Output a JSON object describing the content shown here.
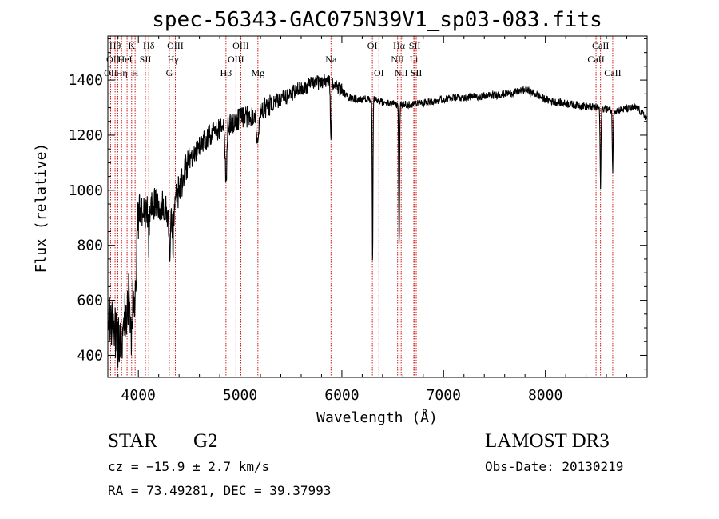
{
  "chart_data": {
    "type": "line",
    "title": "spec-56343-GAC075N39V1_sp03-083.fits",
    "xlabel": "Wavelength (Å)",
    "ylabel": "Flux (relative)",
    "xlim": [
      3700,
      9000
    ],
    "ylim": [
      320,
      1560
    ],
    "xticks": [
      {
        "value": 4000,
        "label": "4000"
      },
      {
        "value": 5000,
        "label": "5000"
      },
      {
        "value": 6000,
        "label": "6000"
      },
      {
        "value": 7000,
        "label": "7000"
      },
      {
        "value": 8000,
        "label": "8000"
      }
    ],
    "yticks": [
      {
        "value": 400,
        "label": "400"
      },
      {
        "value": 600,
        "label": "600"
      },
      {
        "value": 800,
        "label": "800"
      },
      {
        "value": 1000,
        "label": "1000"
      },
      {
        "value": 1200,
        "label": "1200"
      },
      {
        "value": 1400,
        "label": "1400"
      }
    ],
    "line_color": "#000000",
    "marker_color": "#cc0000",
    "spectrum_anchors": [
      [
        3700,
        580
      ],
      [
        3740,
        520
      ],
      [
        3780,
        470
      ],
      [
        3820,
        430
      ],
      [
        3860,
        520
      ],
      [
        3900,
        600
      ],
      [
        3940,
        650
      ],
      [
        3980,
        820
      ],
      [
        4020,
        950
      ],
      [
        4060,
        900
      ],
      [
        4100,
        930
      ],
      [
        4150,
        960
      ],
      [
        4200,
        930
      ],
      [
        4250,
        960
      ],
      [
        4300,
        910
      ],
      [
        4350,
        960
      ],
      [
        4400,
        1000
      ],
      [
        4450,
        1060
      ],
      [
        4500,
        1100
      ],
      [
        4600,
        1160
      ],
      [
        4700,
        1200
      ],
      [
        4800,
        1220
      ],
      [
        4900,
        1240
      ],
      [
        5000,
        1260
      ],
      [
        5100,
        1270
      ],
      [
        5200,
        1290
      ],
      [
        5300,
        1310
      ],
      [
        5400,
        1330
      ],
      [
        5500,
        1350
      ],
      [
        5600,
        1370
      ],
      [
        5700,
        1385
      ],
      [
        5800,
        1395
      ],
      [
        5850,
        1400
      ],
      [
        5950,
        1380
      ],
      [
        6050,
        1340
      ],
      [
        6150,
        1330
      ],
      [
        6300,
        1330
      ],
      [
        6450,
        1315
      ],
      [
        6600,
        1310
      ],
      [
        6750,
        1315
      ],
      [
        6900,
        1325
      ],
      [
        7100,
        1335
      ],
      [
        7300,
        1340
      ],
      [
        7500,
        1345
      ],
      [
        7700,
        1355
      ],
      [
        7800,
        1365
      ],
      [
        7900,
        1350
      ],
      [
        8000,
        1330
      ],
      [
        8100,
        1320
      ],
      [
        8300,
        1310
      ],
      [
        8500,
        1300
      ],
      [
        8700,
        1290
      ],
      [
        8900,
        1300
      ],
      [
        9000,
        1260
      ]
    ],
    "absorption_lines": [
      {
        "wavelength": 3933.7,
        "depth": 160,
        "width": 14
      },
      {
        "wavelength": 3968.5,
        "depth": 140,
        "width": 14
      },
      {
        "wavelength": 4101.7,
        "depth": 120,
        "width": 8
      },
      {
        "wavelength": 4307.9,
        "depth": 140,
        "width": 12
      },
      {
        "wavelength": 4340.5,
        "depth": 150,
        "width": 10
      },
      {
        "wavelength": 4861.3,
        "depth": 220,
        "width": 10
      },
      {
        "wavelength": 5172.7,
        "depth": 130,
        "width": 14
      },
      {
        "wavelength": 5892.9,
        "depth": 200,
        "width": 8
      },
      {
        "wavelength": 6302,
        "depth": 620,
        "width": 5
      },
      {
        "wavelength": 6562.8,
        "depth": 520,
        "width": 6
      },
      {
        "wavelength": 8542,
        "depth": 290,
        "width": 6
      },
      {
        "wavelength": 8662,
        "depth": 230,
        "width": 6
      }
    ],
    "noise_seed": 56343,
    "line_markers": [
      {
        "wavelength": 3727,
        "label": "OII",
        "row": 2
      },
      {
        "wavelength": 3750,
        "label": "OII",
        "row": 1
      },
      {
        "wavelength": 3771,
        "label": "Hθ",
        "row": 0
      },
      {
        "wavelength": 3798,
        "label": "",
        "row": 0
      },
      {
        "wavelength": 3835,
        "label": "Hη",
        "row": 2
      },
      {
        "wavelength": 3869,
        "label": "HeI",
        "row": 1
      },
      {
        "wavelength": 3889,
        "label": "",
        "row": 1
      },
      {
        "wavelength": 3934,
        "label": "K",
        "row": 0
      },
      {
        "wavelength": 3968,
        "label": "H",
        "row": 2
      },
      {
        "wavelength": 4069,
        "label": "SII",
        "row": 1
      },
      {
        "wavelength": 4102,
        "label": "Hδ",
        "row": 0
      },
      {
        "wavelength": 4304,
        "label": "G",
        "row": 2
      },
      {
        "wavelength": 4341,
        "label": "Hγ",
        "row": 1
      },
      {
        "wavelength": 4363,
        "label": "OIII",
        "row": 0
      },
      {
        "wavelength": 4861,
        "label": "Hβ",
        "row": 2
      },
      {
        "wavelength": 4959,
        "label": "OIII",
        "row": 1
      },
      {
        "wavelength": 5007,
        "label": "OIII",
        "row": 0
      },
      {
        "wavelength": 5175,
        "label": "Mg",
        "row": 2
      },
      {
        "wavelength": 5893,
        "label": "Na",
        "row": 1
      },
      {
        "wavelength": 6300,
        "label": "OI",
        "row": 0
      },
      {
        "wavelength": 6364,
        "label": "OI",
        "row": 2
      },
      {
        "wavelength": 6548,
        "label": "NII",
        "row": 1
      },
      {
        "wavelength": 6563,
        "label": "Hα",
        "row": 0
      },
      {
        "wavelength": 6583,
        "label": "NII",
        "row": 2
      },
      {
        "wavelength": 6707,
        "label": "Li",
        "row": 1
      },
      {
        "wavelength": 6716,
        "label": "SII",
        "row": 0
      },
      {
        "wavelength": 6731,
        "label": "SII",
        "row": 2
      },
      {
        "wavelength": 8498,
        "label": "CaII",
        "row": 1
      },
      {
        "wavelength": 8542,
        "label": "CaII",
        "row": 0
      },
      {
        "wavelength": 8662,
        "label": "CaII",
        "row": 2
      }
    ]
  },
  "info": {
    "object_class": "STAR",
    "subclass": "G2",
    "survey": "LAMOST DR3",
    "redshift_line": "cz = −15.9 ± 2.7 km/s",
    "obs_date": "Obs-Date: 20130219",
    "coords_line": "RA =  73.49281, DEC =  39.37993"
  }
}
